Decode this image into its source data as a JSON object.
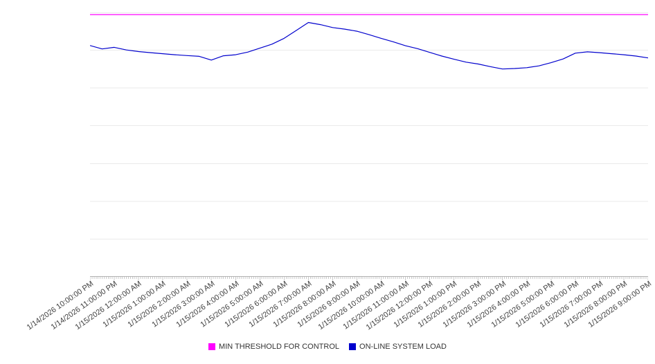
{
  "chart_data": {
    "type": "line",
    "title": "",
    "xlabel": "",
    "ylabel": "",
    "ylim": [
      0,
      100
    ],
    "grid": true,
    "grid_intervals": 7,
    "legend_position": "bottom",
    "x_labels": [
      "1/14/2026 10:00:00 PM",
      "1/14/2026 11:00:00 PM",
      "1/15/2026 12:00:00 AM",
      "1/15/2026 1:00:00 AM",
      "1/15/2026 2:00:00 AM",
      "1/15/2026 3:00:00 AM",
      "1/15/2026 4:00:00 AM",
      "1/15/2026 5:00:00 AM",
      "1/15/2026 6:00:00 AM",
      "1/15/2026 7:00:00 AM",
      "1/15/2026 8:00:00 AM",
      "1/15/2026 9:00:00 AM",
      "1/15/2026 10:00:00 AM",
      "1/15/2026 11:00:00 AM",
      "1/15/2026 12:00:00 PM",
      "1/15/2026 1:00:00 PM",
      "1/15/2026 2:00:00 PM",
      "1/15/2026 3:00:00 PM",
      "1/15/2026 4:00:00 PM",
      "1/15/2026 5:00:00 PM",
      "1/15/2026 6:00:00 PM",
      "1/15/2026 7:00:00 PM",
      "1/15/2026 8:00:00 PM",
      "1/15/2026 9:00:00 PM"
    ],
    "series": [
      {
        "name": "MIN THRESHOLD FOR CONTROL",
        "color": "#ff00ff",
        "values": [
          99.2,
          99.2
        ]
      },
      {
        "name": "ON-LINE SYSTEM LOAD",
        "color": "#0000cd",
        "values": [
          87.5,
          86.2,
          86.8,
          85.8,
          85.2,
          84.8,
          84.4,
          84.0,
          83.7,
          83.4,
          82.0,
          83.6,
          84.0,
          85.0,
          86.5,
          88.0,
          90.2,
          93.2,
          96.2,
          95.4,
          94.3,
          93.7,
          92.9,
          91.6,
          90.2,
          88.9,
          87.4,
          86.3,
          84.9,
          83.5,
          82.3,
          81.2,
          80.5,
          79.5,
          78.6,
          78.8,
          79.1,
          79.8,
          81.0,
          82.4,
          84.6,
          85.1,
          84.8,
          84.4,
          84.0,
          83.5,
          82.8
        ]
      }
    ]
  }
}
